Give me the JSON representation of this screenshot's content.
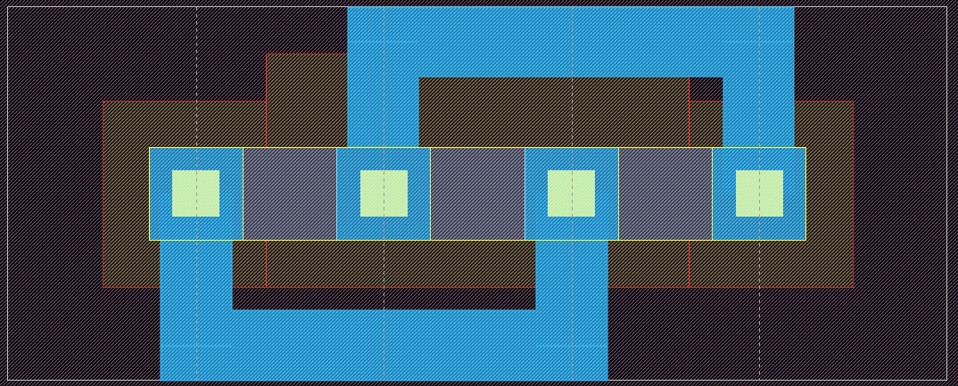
{
  "colors": {
    "background": "#000000",
    "grid_hatch": "#8a6a8a",
    "boundary": "#c0c0c0",
    "poly_dim": "#b03030",
    "poly": "#ff3030",
    "active": "#ffff30",
    "metal": "#2aa8e8",
    "contact": "#c8ffb0",
    "guide": "#a0a0a0"
  },
  "layers": [
    "boundary",
    "poly",
    "active",
    "contact",
    "metal1"
  ]
}
